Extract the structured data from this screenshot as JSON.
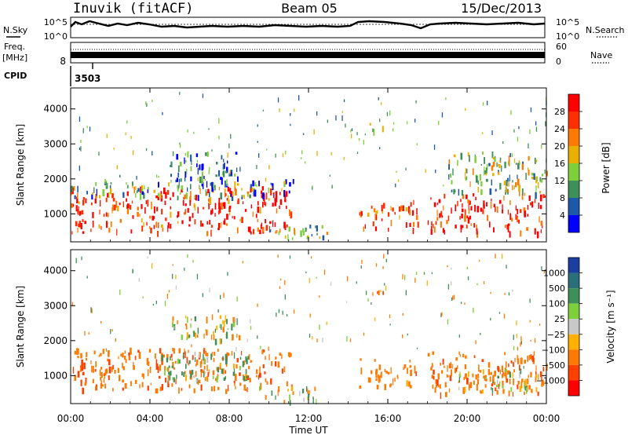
{
  "header": {
    "station": "Inuvik (fitACF)",
    "beam": "Beam 05",
    "date": "15/Dec/2013"
  },
  "nsky_panel": {
    "left_label": "N.Sky",
    "right_label": "N.Search",
    "left_ticks": [
      "10^5",
      "10^0"
    ],
    "right_ticks": [
      "10^5",
      "10^0"
    ]
  },
  "freq_panel": {
    "left_label_1": "Freq.",
    "left_label_2": "[MHz]",
    "right_label": "Nave",
    "left_ticks": [
      "8"
    ],
    "right_ticks": [
      "60",
      "0"
    ]
  },
  "cpid": {
    "label": "CPID",
    "value": "3503"
  },
  "chart_data": [
    {
      "type": "heatmap",
      "title": "",
      "xlabel": "",
      "ylabel": "Slant Range [km]",
      "xlim": [
        0,
        24
      ],
      "ylim": [
        200,
        4600
      ],
      "x_ticks": [
        "00:00",
        "04:00",
        "08:00",
        "12:00",
        "16:00",
        "20:00",
        "00:00"
      ],
      "y_ticks": [
        "1000",
        "2000",
        "3000",
        "4000"
      ],
      "colorbar_label": "Power [dB]",
      "colorbar_ticks": [
        "4",
        "8",
        "12",
        "16",
        "20",
        "24",
        "28"
      ],
      "colorbar_colors": [
        "#0000ff",
        "#1e58a8",
        "#3f8f5a",
        "#7fcf3a",
        "#e8b000",
        "#ff7a00",
        "#ff3000",
        "#ff0000"
      ],
      "echo_regions": [
        {
          "t_start": 0.0,
          "t_end": 11.2,
          "range_low": 500,
          "range_high": 1800,
          "typical": 26
        },
        {
          "t_start": 0.0,
          "t_end": 11.2,
          "range_low": 1500,
          "range_high": 2000,
          "typical": 10
        },
        {
          "t_start": 5.0,
          "t_end": 8.5,
          "range_low": 2000,
          "range_high": 2800,
          "typical": 8
        },
        {
          "t_start": 9.5,
          "t_end": 13.0,
          "range_low": 300,
          "range_high": 700,
          "typical": 14
        },
        {
          "t_start": 14.5,
          "t_end": 17.5,
          "range_low": 600,
          "range_high": 1400,
          "typical": 24
        },
        {
          "t_start": 15.0,
          "t_end": 15.8,
          "range_low": 3400,
          "range_high": 3600,
          "typical": 12
        },
        {
          "t_start": 18.0,
          "t_end": 24.0,
          "range_low": 500,
          "range_high": 1600,
          "typical": 28
        },
        {
          "t_start": 19.0,
          "t_end": 24.0,
          "range_low": 1600,
          "range_high": 2800,
          "typical": 14
        }
      ]
    },
    {
      "type": "heatmap",
      "title": "",
      "xlabel": "Time UT",
      "ylabel": "Slant Range [km]",
      "xlim": [
        0,
        24
      ],
      "ylim": [
        200,
        4600
      ],
      "x_ticks": [
        "00:00",
        "04:00",
        "08:00",
        "12:00",
        "16:00",
        "20:00",
        "00:00"
      ],
      "y_ticks": [
        "1000",
        "2000",
        "3000",
        "4000"
      ],
      "colorbar_label": "Velocity [m s⁻¹]",
      "colorbar_ticks": [
        "1000",
        "500",
        "100",
        "25",
        "−25",
        "−100",
        "−500",
        "−1000"
      ],
      "colorbar_colors": [
        "#1a3fa0",
        "#2a6f7a",
        "#3f8f5a",
        "#7fcf3a",
        "#c8c8c8",
        "#ffb000",
        "#ff7a00",
        "#ff4000",
        "#ff0000"
      ],
      "echo_regions": [
        {
          "t_start": 0.0,
          "t_end": 11.2,
          "range_low": 600,
          "range_high": 1800,
          "typical": -400
        },
        {
          "t_start": 4.5,
          "t_end": 9.0,
          "range_low": 900,
          "range_high": 1700,
          "typical": 200
        },
        {
          "t_start": 5.0,
          "t_end": 8.5,
          "range_low": 2000,
          "range_high": 2800,
          "typical": 0
        },
        {
          "t_start": 9.5,
          "t_end": 13.0,
          "range_low": 300,
          "range_high": 700,
          "typical": 0
        },
        {
          "t_start": 14.5,
          "t_end": 17.5,
          "range_low": 700,
          "range_high": 1500,
          "typical": -300
        },
        {
          "t_start": 15.0,
          "t_end": 15.8,
          "range_low": 3400,
          "range_high": 3600,
          "typical": -400
        },
        {
          "t_start": 18.0,
          "t_end": 24.0,
          "range_low": 500,
          "range_high": 1700,
          "typical": -400
        },
        {
          "t_start": 19.5,
          "t_end": 23.5,
          "range_low": 600,
          "range_high": 1300,
          "typical": 0
        }
      ]
    }
  ]
}
